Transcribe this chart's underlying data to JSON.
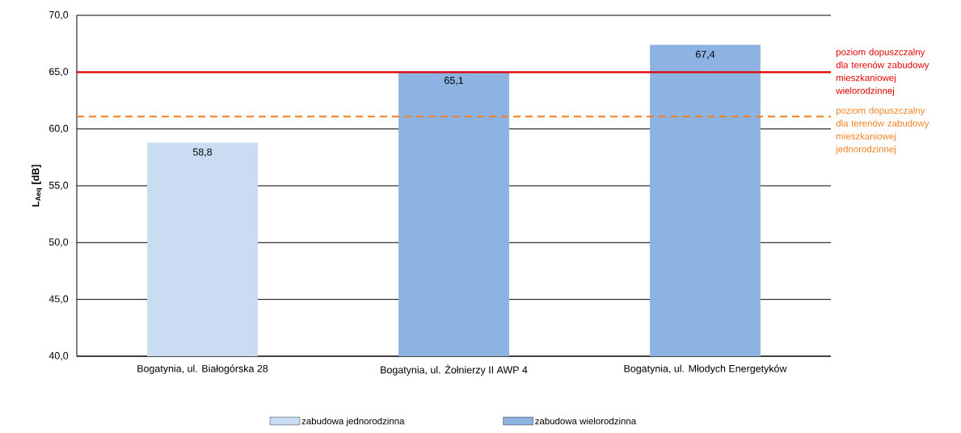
{
  "chart_data": {
    "type": "bar",
    "ylabel": "L$_{Aeq}$ [dB]",
    "categories": [
      "Bogatynia, ul. Białogórska 28",
      "Bogatynia, ul. Żołnierzy II AWP 4",
      "Bogatynia, ul. Młodych Energetyków"
    ],
    "series": [
      {
        "name": "zabudowa jednorodzinna",
        "color": "#c9dcf2",
        "values": [
          58.8,
          null,
          null
        ],
        "value_labels": [
          "58,8",
          null,
          null
        ]
      },
      {
        "name": "zabudowa  wielorodzinna",
        "color": "#8db3e2",
        "values": [
          null,
          65.1,
          67.4
        ],
        "value_labels": [
          null,
          "65,1",
          "67,4"
        ]
      }
    ],
    "ylim": [
      40,
      70
    ],
    "yticks": [
      {
        "value": 40,
        "label": "40,0"
      },
      {
        "value": 45,
        "label": "45,0"
      },
      {
        "value": 50,
        "label": "50,0"
      },
      {
        "value": 55,
        "label": "55,0"
      },
      {
        "value": 60,
        "label": "60,0"
      },
      {
        "value": 65,
        "label": "65,0"
      },
      {
        "value": 70,
        "label": "70,0"
      }
    ],
    "ref_lines": [
      {
        "axis": "y",
        "value": 65,
        "label": "poziom dopuszczalny dla terenów zabudowy mieszkaniowej wielorodzinnej",
        "color": "#e00000",
        "line_style": "solid"
      },
      {
        "axis": "y",
        "value": 61.1,
        "label": "poziom dopuszczalny dla terenów zabudowy mieszkaniowej jednorodzinnej",
        "color": "#f07f1e",
        "line_style": "dashed"
      }
    ],
    "grid": "y",
    "legend": "bottom"
  }
}
